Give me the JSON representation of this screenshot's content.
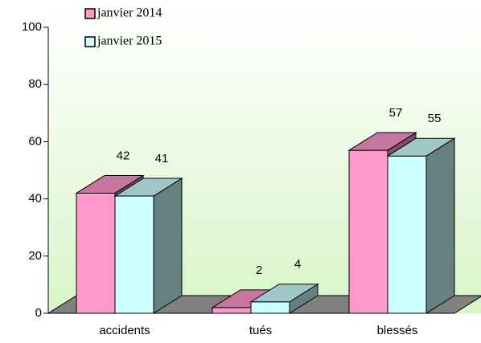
{
  "chart_data": {
    "type": "bar3d",
    "categories": [
      "accidents",
      "tués",
      "blessés"
    ],
    "series": [
      {
        "name": "janvier 2014",
        "color": "#ff99cc",
        "values": [
          42,
          2,
          57
        ]
      },
      {
        "name": "janvier 2015",
        "color": "#ccffff",
        "values": [
          41,
          4,
          55
        ]
      }
    ],
    "ylim": [
      0,
      100
    ],
    "yticks": [
      0,
      20,
      40,
      60,
      80,
      100
    ],
    "legend": "top"
  }
}
